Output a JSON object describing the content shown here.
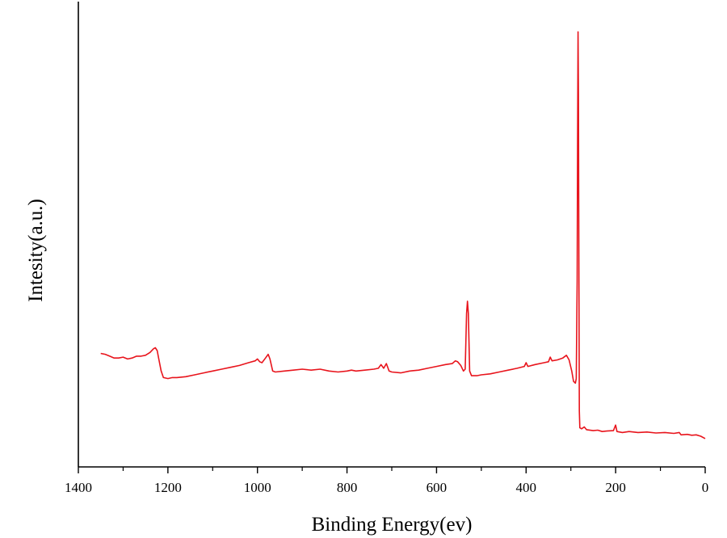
{
  "chart_data": {
    "type": "line",
    "title": "",
    "xlabel": "Binding Energy(ev)",
    "ylabel": "Intesity(a.u.)",
    "xlim": [
      1400,
      0
    ],
    "ylim": [
      0,
      100
    ],
    "x_reversed": true,
    "x_ticks": [
      1400,
      1200,
      1000,
      800,
      600,
      400,
      200,
      0
    ],
    "y_ticks_shown": false,
    "grid": false,
    "legend": "none",
    "series": [
      {
        "color": "#e8141c",
        "points": [
          [
            1350,
            24.4
          ],
          [
            1340,
            24.2
          ],
          [
            1330,
            23.8
          ],
          [
            1320,
            23.4
          ],
          [
            1310,
            23.4
          ],
          [
            1300,
            23.6
          ],
          [
            1290,
            23.2
          ],
          [
            1280,
            23.4
          ],
          [
            1270,
            23.8
          ],
          [
            1260,
            23.8
          ],
          [
            1250,
            24.0
          ],
          [
            1240,
            24.6
          ],
          [
            1232,
            25.4
          ],
          [
            1228,
            25.6
          ],
          [
            1224,
            25.0
          ],
          [
            1220,
            23.0
          ],
          [
            1215,
            20.6
          ],
          [
            1210,
            19.2
          ],
          [
            1200,
            19.0
          ],
          [
            1190,
            19.2
          ],
          [
            1180,
            19.2
          ],
          [
            1160,
            19.4
          ],
          [
            1140,
            19.8
          ],
          [
            1120,
            20.2
          ],
          [
            1100,
            20.6
          ],
          [
            1080,
            21.0
          ],
          [
            1060,
            21.4
          ],
          [
            1040,
            21.8
          ],
          [
            1020,
            22.4
          ],
          [
            1005,
            22.8
          ],
          [
            1000,
            23.2
          ],
          [
            995,
            22.6
          ],
          [
            990,
            22.4
          ],
          [
            982,
            23.4
          ],
          [
            976,
            24.2
          ],
          [
            972,
            23.2
          ],
          [
            966,
            20.6
          ],
          [
            960,
            20.4
          ],
          [
            940,
            20.6
          ],
          [
            920,
            20.8
          ],
          [
            900,
            21.0
          ],
          [
            880,
            20.8
          ],
          [
            860,
            21.0
          ],
          [
            840,
            20.6
          ],
          [
            820,
            20.4
          ],
          [
            800,
            20.6
          ],
          [
            790,
            20.8
          ],
          [
            780,
            20.6
          ],
          [
            760,
            20.8
          ],
          [
            740,
            21.0
          ],
          [
            730,
            21.2
          ],
          [
            724,
            22.0
          ],
          [
            718,
            21.2
          ],
          [
            712,
            22.2
          ],
          [
            706,
            20.6
          ],
          [
            700,
            20.4
          ],
          [
            680,
            20.2
          ],
          [
            660,
            20.6
          ],
          [
            640,
            20.8
          ],
          [
            620,
            21.2
          ],
          [
            600,
            21.6
          ],
          [
            580,
            22.0
          ],
          [
            565,
            22.2
          ],
          [
            558,
            22.8
          ],
          [
            553,
            22.6
          ],
          [
            546,
            21.8
          ],
          [
            540,
            20.6
          ],
          [
            536,
            21.0
          ],
          [
            533,
            33.0
          ],
          [
            531,
            35.6
          ],
          [
            529,
            33.0
          ],
          [
            526,
            20.6
          ],
          [
            522,
            19.6
          ],
          [
            510,
            19.6
          ],
          [
            500,
            19.8
          ],
          [
            480,
            20.0
          ],
          [
            460,
            20.4
          ],
          [
            440,
            20.8
          ],
          [
            420,
            21.2
          ],
          [
            404,
            21.6
          ],
          [
            400,
            22.4
          ],
          [
            396,
            21.6
          ],
          [
            380,
            22.0
          ],
          [
            360,
            22.4
          ],
          [
            350,
            22.6
          ],
          [
            346,
            23.6
          ],
          [
            342,
            22.8
          ],
          [
            330,
            23.0
          ],
          [
            318,
            23.4
          ],
          [
            310,
            24.0
          ],
          [
            304,
            23.0
          ],
          [
            298,
            20.6
          ],
          [
            294,
            18.4
          ],
          [
            290,
            18.0
          ],
          [
            288,
            19.0
          ],
          [
            286,
            40.0
          ],
          [
            285,
            70.0
          ],
          [
            284,
            93.5
          ],
          [
            283,
            80.0
          ],
          [
            282,
            40.0
          ],
          [
            281,
            12.0
          ],
          [
            280,
            8.4
          ],
          [
            276,
            8.2
          ],
          [
            270,
            8.6
          ],
          [
            265,
            8.0
          ],
          [
            250,
            7.8
          ],
          [
            240,
            7.9
          ],
          [
            230,
            7.6
          ],
          [
            220,
            7.7
          ],
          [
            205,
            7.8
          ],
          [
            200,
            9.0
          ],
          [
            197,
            7.6
          ],
          [
            185,
            7.4
          ],
          [
            170,
            7.6
          ],
          [
            150,
            7.4
          ],
          [
            130,
            7.5
          ],
          [
            110,
            7.3
          ],
          [
            90,
            7.4
          ],
          [
            70,
            7.2
          ],
          [
            58,
            7.4
          ],
          [
            54,
            6.9
          ],
          [
            40,
            7.0
          ],
          [
            30,
            6.8
          ],
          [
            20,
            6.9
          ],
          [
            10,
            6.6
          ],
          [
            0,
            6.1
          ]
        ]
      }
    ]
  }
}
